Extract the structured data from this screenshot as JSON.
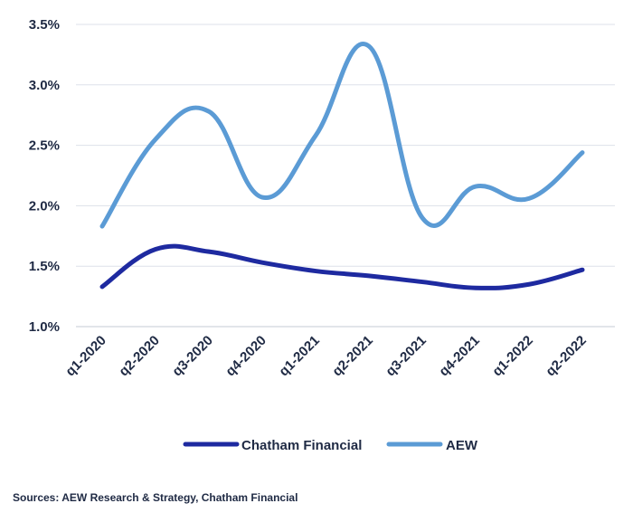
{
  "chart_data": {
    "type": "line",
    "categories": [
      "q1-2020",
      "q2-2020",
      "q3-2020",
      "q4-2020",
      "q1-2021",
      "q2-2021",
      "q3-2021",
      "q4-2021",
      "q1-2022",
      "q2-2022"
    ],
    "series": [
      {
        "name": "Chatham Financial",
        "color": "#1e2aa0",
        "values": [
          1.33,
          1.64,
          1.62,
          1.53,
          1.46,
          1.42,
          1.37,
          1.32,
          1.35,
          1.47
        ]
      },
      {
        "name": "AEW",
        "color": "#5b9bd5",
        "values": [
          1.83,
          2.55,
          2.78,
          2.07,
          2.58,
          3.32,
          1.9,
          2.16,
          2.06,
          2.44
        ]
      }
    ],
    "ylim": [
      1.0,
      3.5
    ],
    "yticks": [
      "1.0%",
      "1.5%",
      "2.0%",
      "2.5%",
      "3.0%",
      "3.5%"
    ],
    "grid": true,
    "legend_position": "bottom"
  },
  "source_note": "Sources: AEW Research & Strategy, Chatham Financial"
}
